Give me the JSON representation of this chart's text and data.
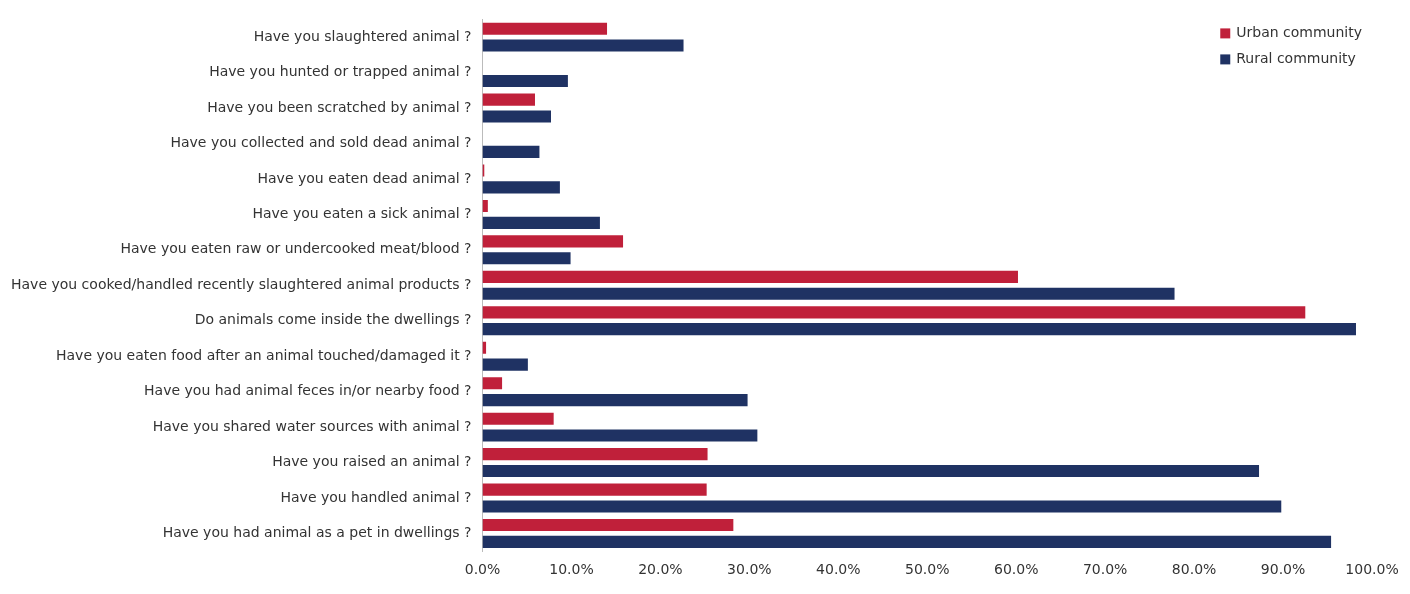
{
  "chart_data": {
    "type": "bar",
    "orientation": "horizontal",
    "categories": [
      "Have you slaughtered animal ?",
      "Have you hunted or trapped animal ?",
      "Have you been scratched by animal ?",
      "Have you collected and sold dead animal ?",
      "Have you eaten dead animal ?",
      "Have you eaten a sick animal ?",
      "Have you eaten raw or undercooked meat/blood ?",
      "Have you cooked/handled recently slaughtered animal products ?",
      "Do animals come inside the dwellings ?",
      "Have you eaten food after an animal touched/damaged it ?",
      "Have you had animal feces in/or nearby food ?",
      "Have you shared water sources with animal ?",
      "Have you raised an animal ?",
      "Have you handled animal ?",
      "Have you had animal as a pet in dwellings ?"
    ],
    "series": [
      {
        "name": "Urban community",
        "color": "#c0203a",
        "values": [
          14.0,
          0,
          5.9,
          0,
          0.2,
          0.6,
          15.8,
          60.2,
          92.5,
          0.4,
          2.2,
          8.0,
          25.3,
          25.2,
          28.2
        ]
      },
      {
        "name": "Rural community",
        "color": "#1f3263",
        "values": [
          22.6,
          9.6,
          7.7,
          6.4,
          8.7,
          13.2,
          9.9,
          77.8,
          98.2,
          5.1,
          29.8,
          30.9,
          87.3,
          89.8,
          95.4
        ]
      }
    ],
    "xlim": [
      0,
      100
    ],
    "xticks": [
      {
        "value": 0,
        "label": "0.0%"
      },
      {
        "value": 10,
        "label": "10.0%"
      },
      {
        "value": 20,
        "label": "20.0%"
      },
      {
        "value": 30,
        "label": "30.0%"
      },
      {
        "value": 40,
        "label": "40.0%"
      },
      {
        "value": 50,
        "label": "50.0%"
      },
      {
        "value": 60,
        "label": "60.0%"
      },
      {
        "value": 70,
        "label": "70.0%"
      },
      {
        "value": 80,
        "label": "80.0%"
      },
      {
        "value": 90,
        "label": "90.0%"
      },
      {
        "value": 100,
        "label": "100.0%"
      }
    ],
    "legend": "top right"
  }
}
